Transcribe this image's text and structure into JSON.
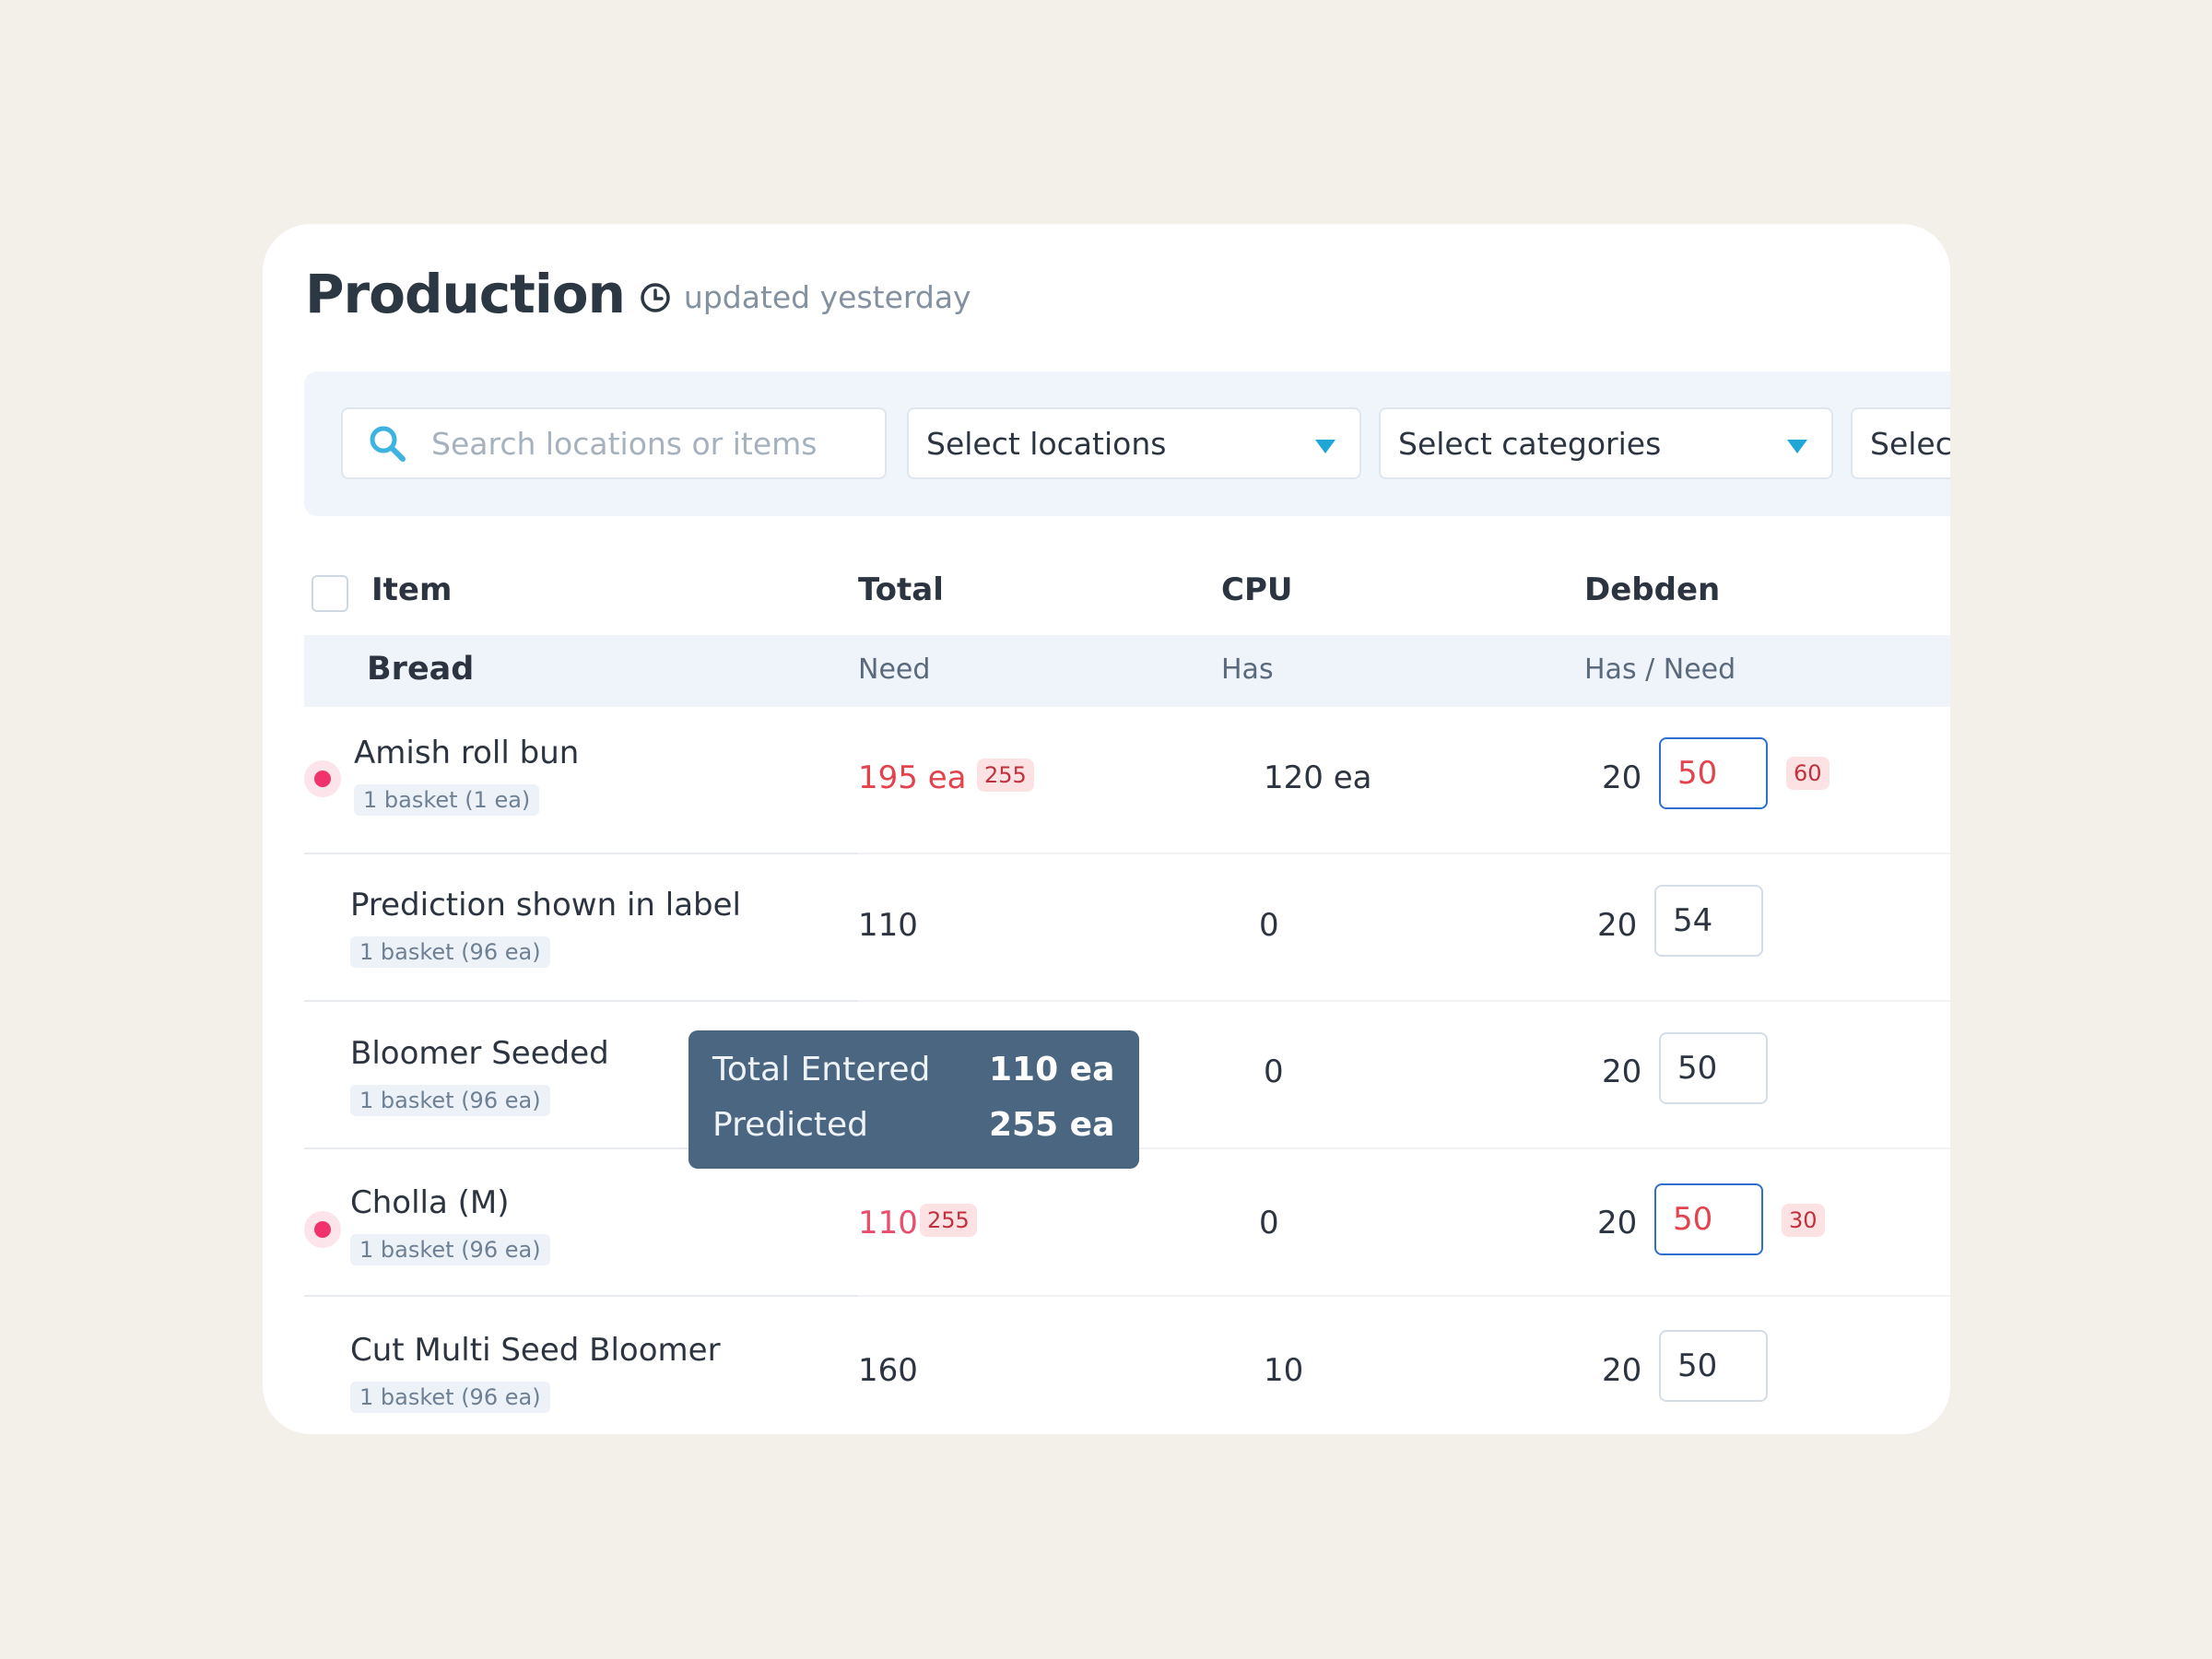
{
  "header": {
    "title": "Production",
    "updated": "updated yesterday"
  },
  "filters": {
    "search_placeholder": "Search locations or items",
    "locations": "Select locations",
    "categories": "Select categories",
    "third": "Select"
  },
  "table": {
    "columns": {
      "item": "Item",
      "total": "Total",
      "cpu": "CPU",
      "debden": "Debden"
    },
    "subheader": {
      "category": "Bread",
      "total": "Need",
      "cpu": "Has",
      "debden": "Has / Need"
    },
    "rows": [
      {
        "name": "Amish roll bun",
        "pack": "1 basket (1 ea)",
        "total": "195 ea",
        "total_badge": "255",
        "cpu": "120 ea",
        "has": "20",
        "need": "50",
        "need_badge": "60"
      },
      {
        "name": "Prediction shown in label",
        "pack": "1 basket (96 ea)",
        "total": "110",
        "cpu": "0",
        "has": "20",
        "need": "54"
      },
      {
        "name": "Bloomer Seeded",
        "pack": "1 basket (96 ea)",
        "cpu": "0",
        "has": "20",
        "need": "50"
      },
      {
        "name": "Cholla (M)",
        "pack": "1 basket (96 ea)",
        "total": "110",
        "total_badge": "255",
        "cpu": "0",
        "has": "20",
        "need": "50",
        "need_badge": "30"
      },
      {
        "name": "Cut Multi Seed Bloomer",
        "pack": "1 basket (96 ea)",
        "total": "160",
        "cpu": "10",
        "has": "20",
        "need": "50"
      }
    ]
  },
  "tooltip": {
    "entered_label": "Total Entered",
    "entered_value": "110 ea",
    "predicted_label": "Predicted",
    "predicted_value": "255 ea"
  },
  "colors": {
    "accent": "#1ea6d6",
    "alert": "#f0346b",
    "error": "#e4424d",
    "focus": "#2f6fd0"
  }
}
